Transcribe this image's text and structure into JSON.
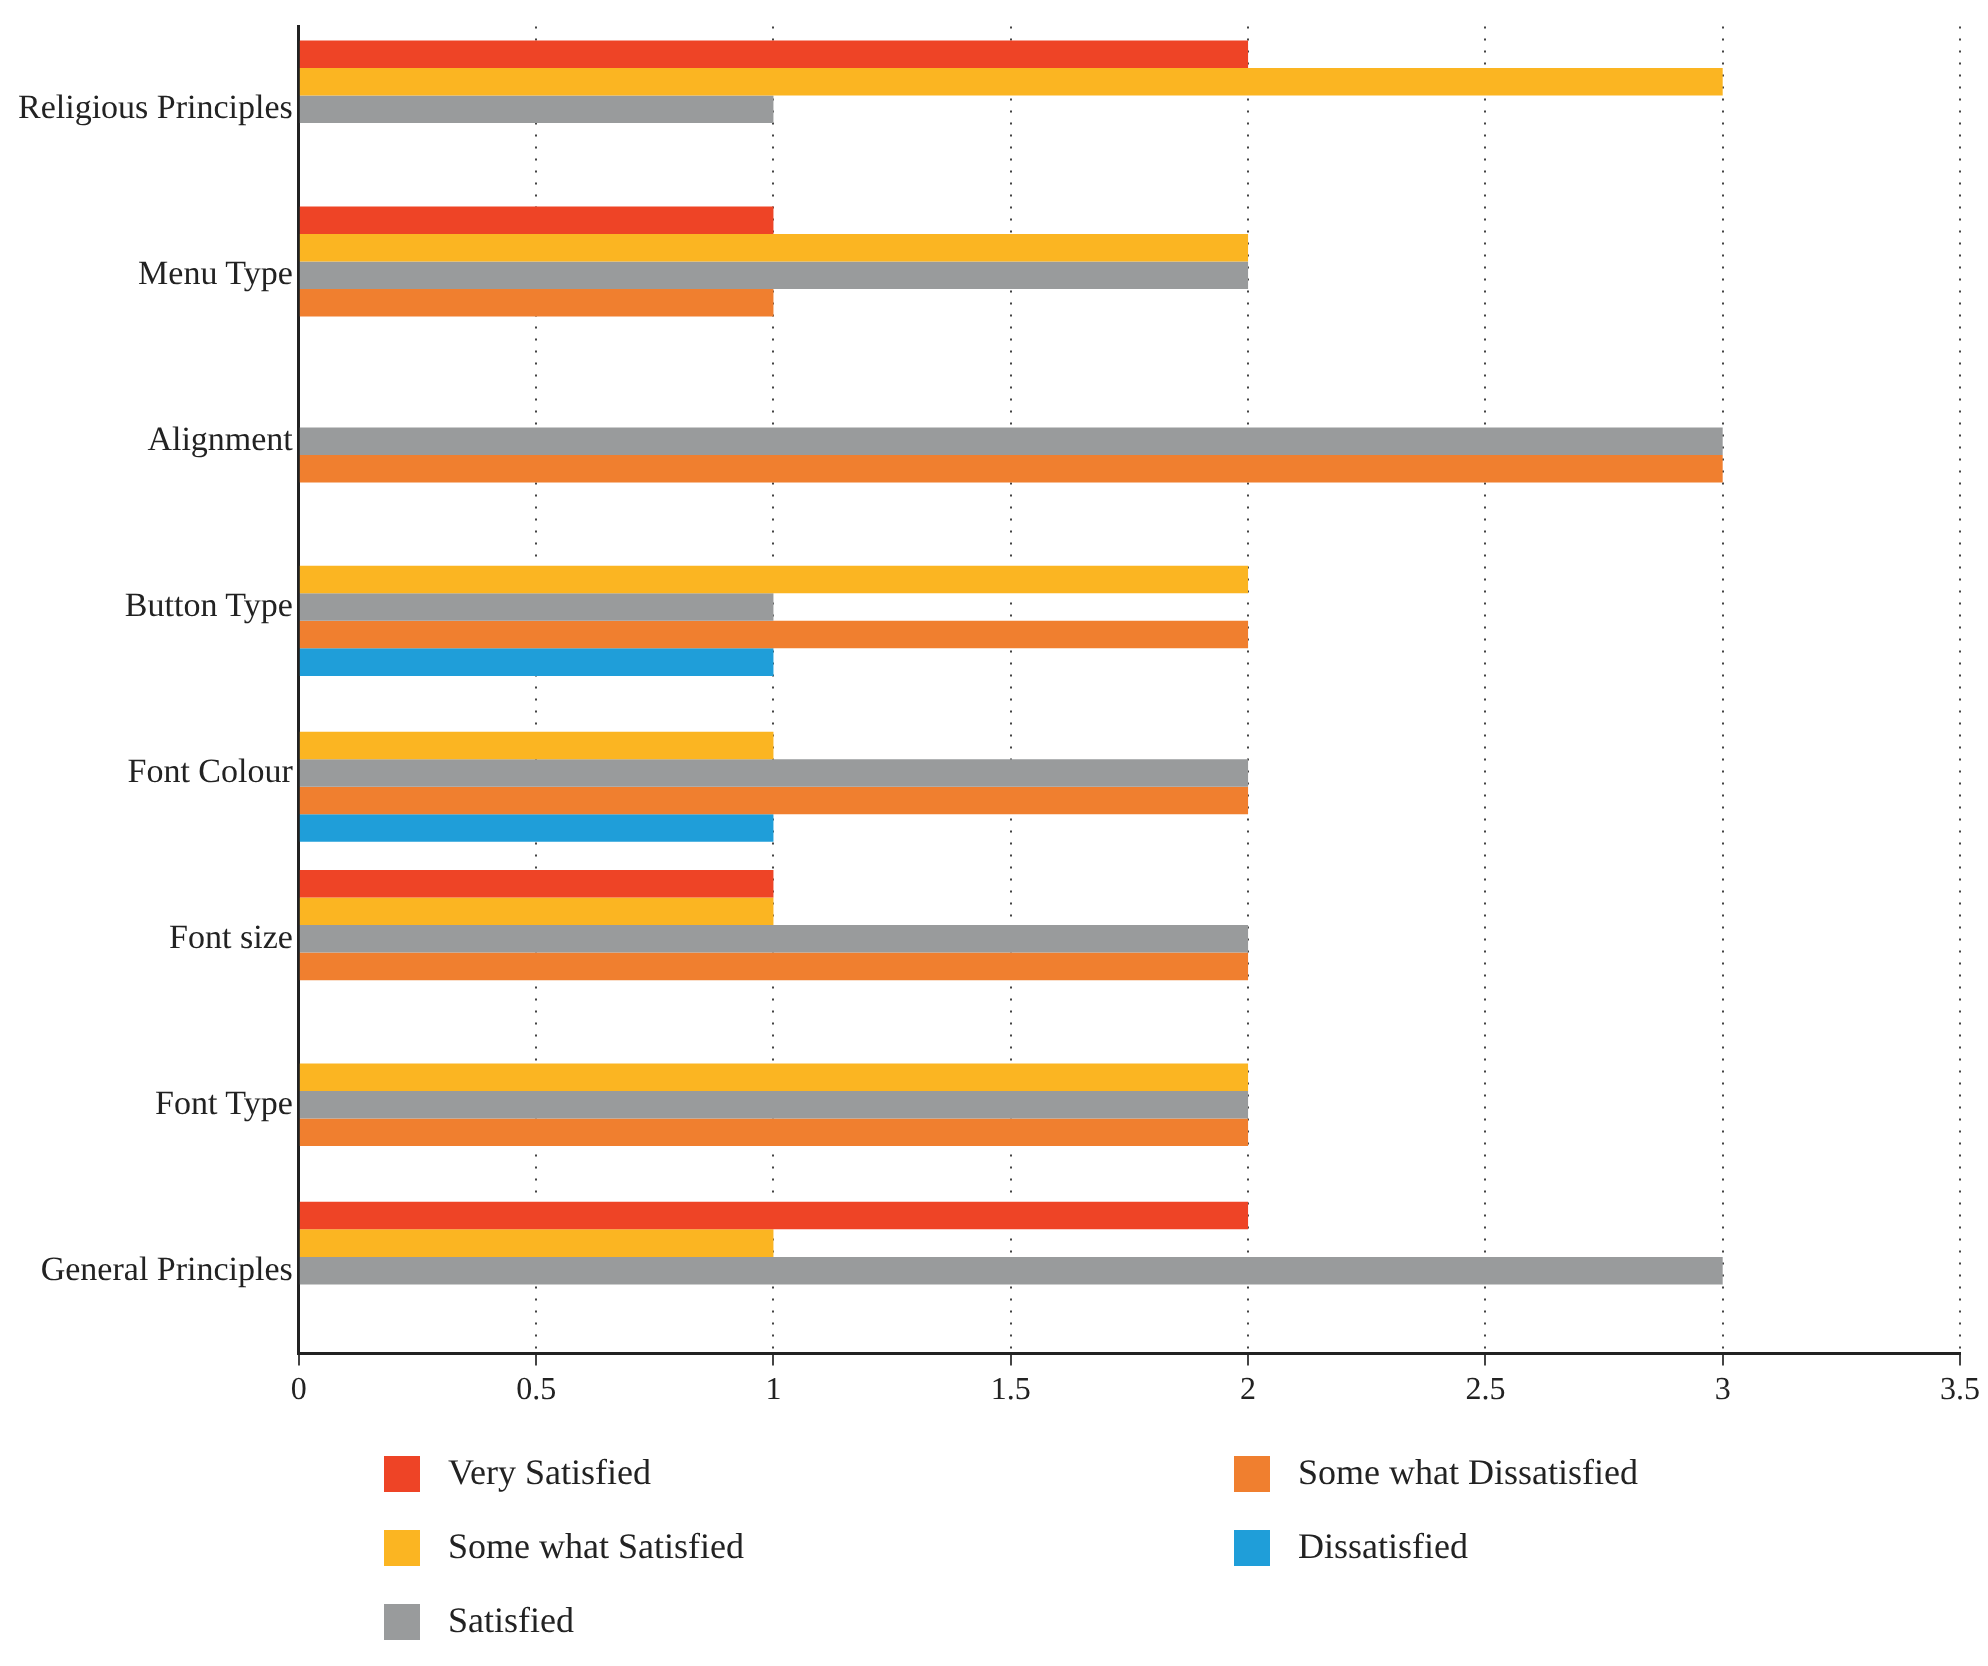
{
  "chart_data": {
    "type": "bar",
    "orientation": "horizontal",
    "categories": [
      "Religious Principles",
      "Menu Type",
      "Alignment",
      "Button Type",
      "Font Colour",
      "Font size",
      "Font Type",
      "General Principles"
    ],
    "series": [
      {
        "name": "Very Satisfied",
        "color": "#ee4426",
        "values": [
          2,
          1,
          null,
          null,
          null,
          1,
          null,
          2
        ]
      },
      {
        "name": "Some what Satisfied",
        "color": "#fbb522",
        "values": [
          3,
          2,
          null,
          2,
          1,
          1,
          2,
          1
        ]
      },
      {
        "name": "Satisfied",
        "color": "#999b9c",
        "values": [
          1,
          2,
          3,
          1,
          2,
          2,
          2,
          3
        ]
      },
      {
        "name": "Some what Dissatisfied",
        "color": "#f07f2f",
        "values": [
          null,
          1,
          3,
          2,
          2,
          2,
          2,
          null
        ]
      },
      {
        "name": "Dissatisfied",
        "color": "#1f9ed9",
        "values": [
          null,
          null,
          null,
          1,
          1,
          null,
          null,
          null
        ]
      }
    ],
    "xlim": [
      0,
      3.5
    ],
    "xticks": [
      0,
      0.5,
      1,
      1.5,
      2,
      2.5,
      3,
      3.5
    ],
    "grid": "x",
    "legend": "bottom"
  }
}
